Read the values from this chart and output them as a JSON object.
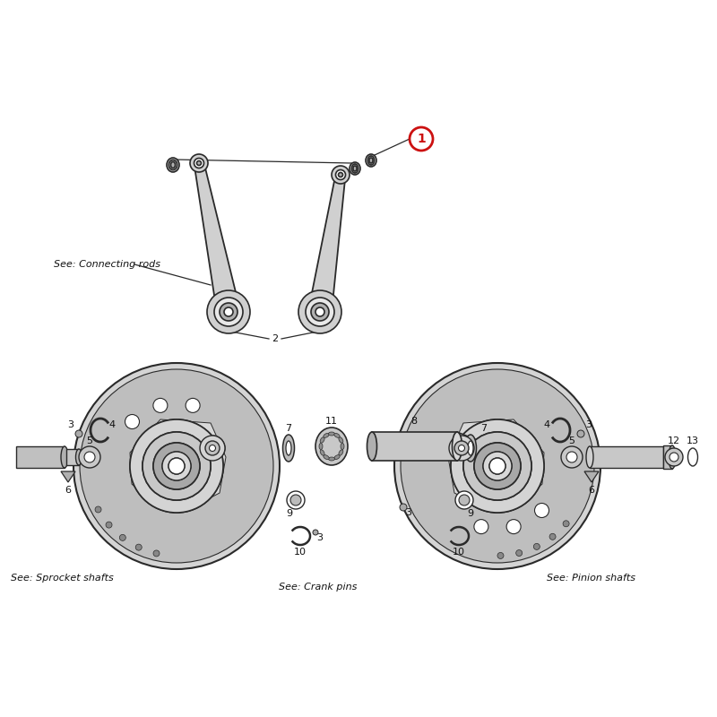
{
  "bg_color": "#ffffff",
  "lc": "#2a2a2a",
  "lc2": "#555555",
  "rc": "#cc1111",
  "tc": "#111111",
  "fw_face": "#d4d4d4",
  "fw_rim": "#bebebe",
  "fw_hub": "#c8c8c8",
  "fw_dark": "#a8a8a8",
  "rod_face": "#d0d0d0",
  "rod_dark": "#b0b0b0",
  "shaft_face": "#c8c8c8",
  "labels": {
    "conn": "See: Connecting rods",
    "spro": "See: Sprocket shafts",
    "crank": "See: Crank pins",
    "pini": "See: Pinion shafts"
  }
}
